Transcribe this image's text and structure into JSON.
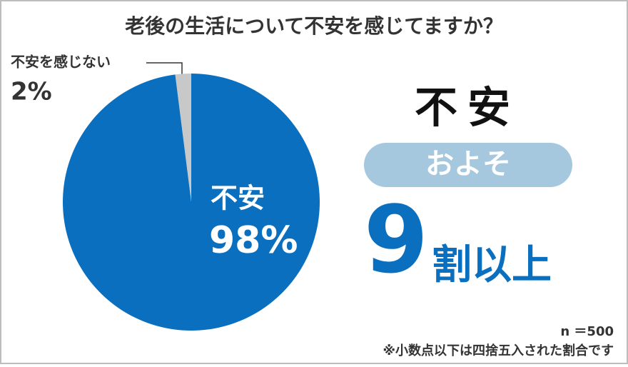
{
  "chart_data": {
    "type": "pie",
    "title": "老後の生活について不安を感じてますか？",
    "categories": [
      "不安を感じない",
      "不安"
    ],
    "values": [
      2,
      98
    ],
    "value_labels": [
      "2%",
      "98%"
    ],
    "colors": [
      "#c8c8c8",
      "#0a6fbf"
    ],
    "annotations": {
      "headline": "不安",
      "badge": "およそ",
      "big_number": "9",
      "big_suffix": "割以上"
    },
    "sample_size": "n ＝500",
    "footnote": "※小数点以下は四捨五入された割合です"
  }
}
